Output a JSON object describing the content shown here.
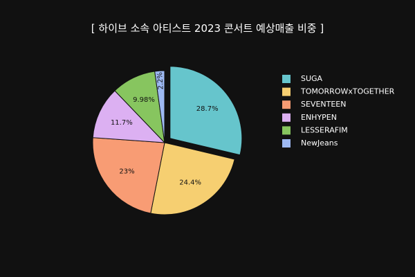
{
  "chart_data": {
    "type": "pie",
    "title": "[ 하이브 소속 아티스트 2023 콘서트 예상매출 비중 ]",
    "labels": [
      "SUGA",
      "TOMORROWxTOGETHER",
      "SEVENTEEN",
      "ENHYPEN",
      "LESSERAFIM",
      "NewJeans"
    ],
    "values": [
      28.7,
      24.4,
      23,
      11.7,
      9.98,
      2.2
    ],
    "value_labels": [
      "28.7%",
      "24.4%",
      "23%",
      "11.7%",
      "9.98%",
      "2.2%"
    ],
    "colors": [
      "#66C5CC",
      "#F6CF71",
      "#F89C74",
      "#DCB0F2",
      "#87C55F",
      "#9EB9F3"
    ],
    "pulled_slice": "SUGA",
    "direction": "clockwise",
    "legend_placement": "right",
    "legend_order": [
      "SUGA",
      "TOMORROWxTOGETHER",
      "SEVENTEEN",
      "ENHYPEN",
      "LESSERAFIM",
      "NewJeans"
    ]
  },
  "theme": {
    "background": "#111111",
    "text_color": "#ffffff",
    "label_color": "#111111"
  }
}
